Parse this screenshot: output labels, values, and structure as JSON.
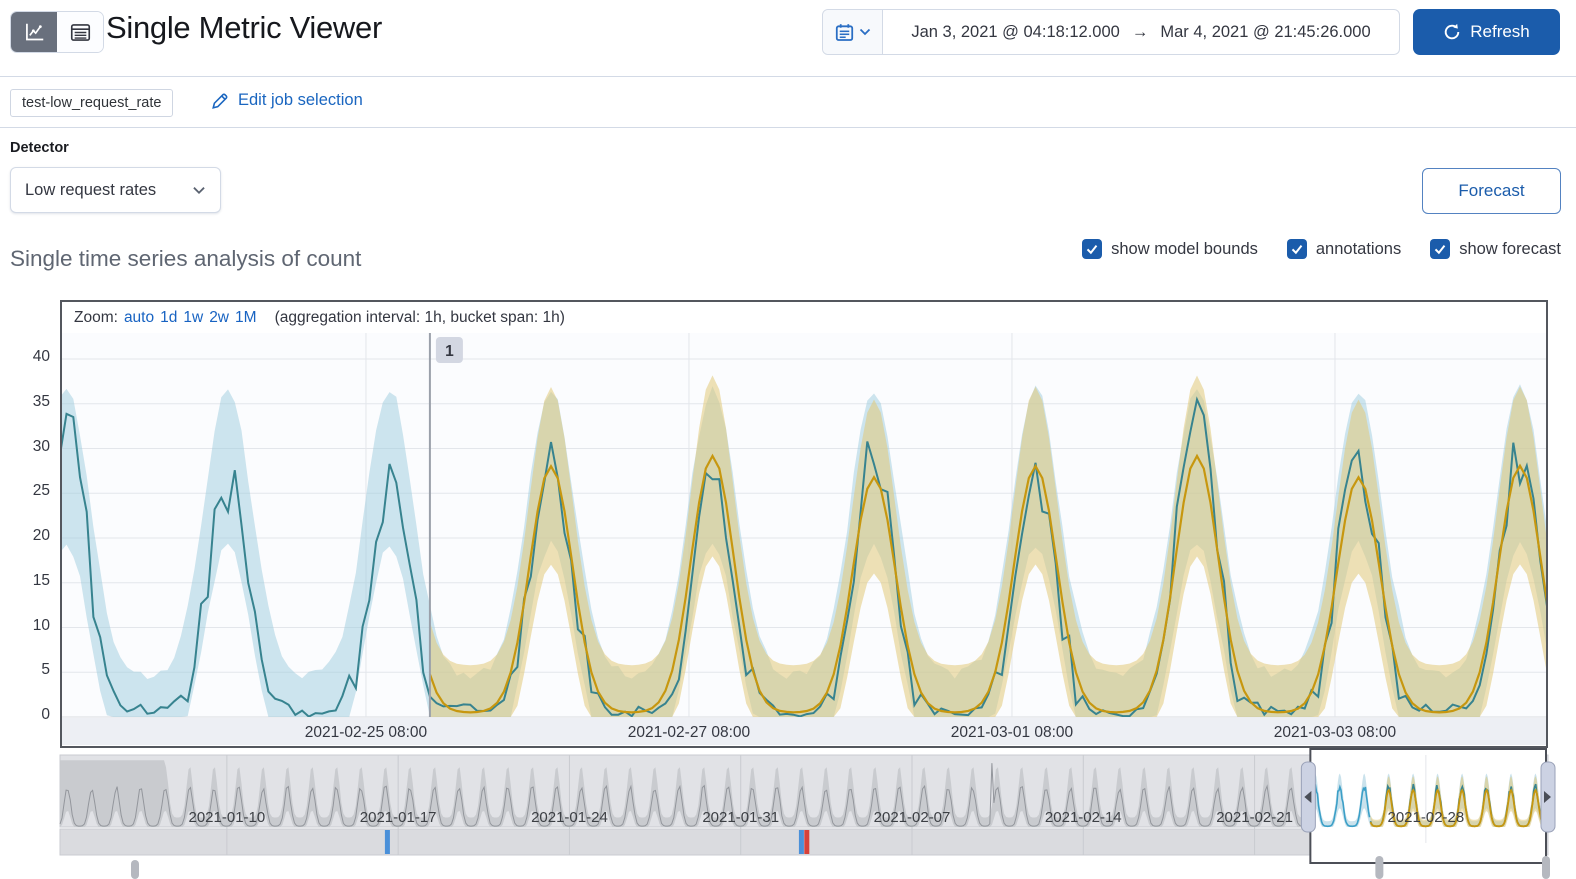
{
  "header": {
    "title": "Single Metric Viewer",
    "view_toggle": [
      {
        "name": "chart-view",
        "selected": true
      },
      {
        "name": "table-view",
        "selected": false
      }
    ],
    "date_range": {
      "start": "Jan 3, 2021 @ 04:18:12.000",
      "separator": "→",
      "end": "Mar 4, 2021 @ 21:45:26.000"
    },
    "refresh_label": "Refresh"
  },
  "job_bar": {
    "job_badge": "test-low_request_rate",
    "edit_link": "Edit job selection"
  },
  "controls": {
    "detector_label": "Detector",
    "detector_value": "Low request rates",
    "forecast_button": "Forecast",
    "checkboxes": [
      {
        "label": "show model bounds",
        "checked": true
      },
      {
        "label": "annotations",
        "checked": true
      },
      {
        "label": "show forecast",
        "checked": true
      }
    ]
  },
  "section_title": "Single time series analysis of count",
  "zoom_bar": {
    "prefix": "Zoom:",
    "links": [
      "auto",
      "1d",
      "1w",
      "2w",
      "1M"
    ],
    "suffix": "(aggregation interval: 1h, bucket span: 1h)"
  },
  "colors": {
    "accent_blue": "#1b5cab",
    "link_blue": "#1a66c0",
    "actual_line": "#37838f",
    "model_band": "#9ecbdd",
    "forecast_line": "#c7970f",
    "forecast_band": "#e2c878",
    "context_band": "#c7c9cd",
    "context_line": "#93969c",
    "context_actual_blue": "#3b9fc7",
    "annotation_blue": "#4a90d9",
    "annotation_red": "#d6413a"
  },
  "chart_data": {
    "type": "line",
    "main": {
      "title": "Single time series analysis of count",
      "xlabel": "",
      "ylabel": "",
      "ylim": [
        0,
        42.5
      ],
      "yticks": [
        0,
        5,
        10,
        15,
        20,
        25,
        30,
        35,
        40
      ],
      "xticks": [
        {
          "label": "2021-02-25 08:00",
          "hour": 45.5
        },
        {
          "label": "2021-02-27 08:00",
          "hour": 93.5
        },
        {
          "label": "2021-03-01 08:00",
          "hour": 141.5
        },
        {
          "label": "2021-03-03 08:00",
          "hour": 189.5
        }
      ],
      "x_range_hours": [
        0,
        221
      ],
      "aggregation_interval": "1h",
      "bucket_span": "1h",
      "period_hours": 24,
      "peak_hour_of_day": 11.5,
      "series": [
        {
          "name": "actual",
          "type": "line",
          "color": "#37838f",
          "daily_peaks": [
            35,
            28,
            26,
            29,
            27,
            28,
            28,
            34,
            31,
            29
          ],
          "trough_value": 0.5
        },
        {
          "name": "model bounds",
          "type": "band",
          "color": "#9ecbdd",
          "upper_peak": 36,
          "upper_trough": 4.6,
          "lower_peak": 19,
          "lower_trough": 0
        },
        {
          "name": "forecast",
          "type": "line",
          "color": "#c7970f",
          "band_color": "#e2c878",
          "start_hour": 55,
          "peak": 27.5,
          "trough": 0.5,
          "band_upper_peak": 36,
          "band_lower_peak": 17
        }
      ],
      "annotations": [
        {
          "label": "1",
          "hour": 55
        }
      ]
    },
    "context": {
      "start": "2021-01-03 04:18",
      "end": "2021-03-04 21:45",
      "x_range_days": [
        0,
        60.73
      ],
      "xticks": [
        {
          "label": "2021-01-10",
          "day": 6.82
        },
        {
          "label": "2021-01-17",
          "day": 13.82
        },
        {
          "label": "2021-01-24",
          "day": 20.82
        },
        {
          "label": "2021-01-31",
          "day": 27.82
        },
        {
          "label": "2021-02-07",
          "day": 34.82
        },
        {
          "label": "2021-02-14",
          "day": 41.82
        },
        {
          "label": "2021-02-21",
          "day": 48.82
        },
        {
          "label": "2021-02-28",
          "day": 55.82
        }
      ],
      "selection_days": [
        51.1,
        60.73
      ],
      "forecast_start_day": 53.55,
      "plateau_end_day": 4.3,
      "spike_day": 38.1,
      "line_peak": 27,
      "band_upper_peak": 43,
      "annotation_markers": [
        {
          "color": "#4a90d9",
          "day": 13.36
        },
        {
          "color": "#4a90d9",
          "day": 30.28
        },
        {
          "color": "#d6413a",
          "day": 30.5
        }
      ]
    }
  }
}
